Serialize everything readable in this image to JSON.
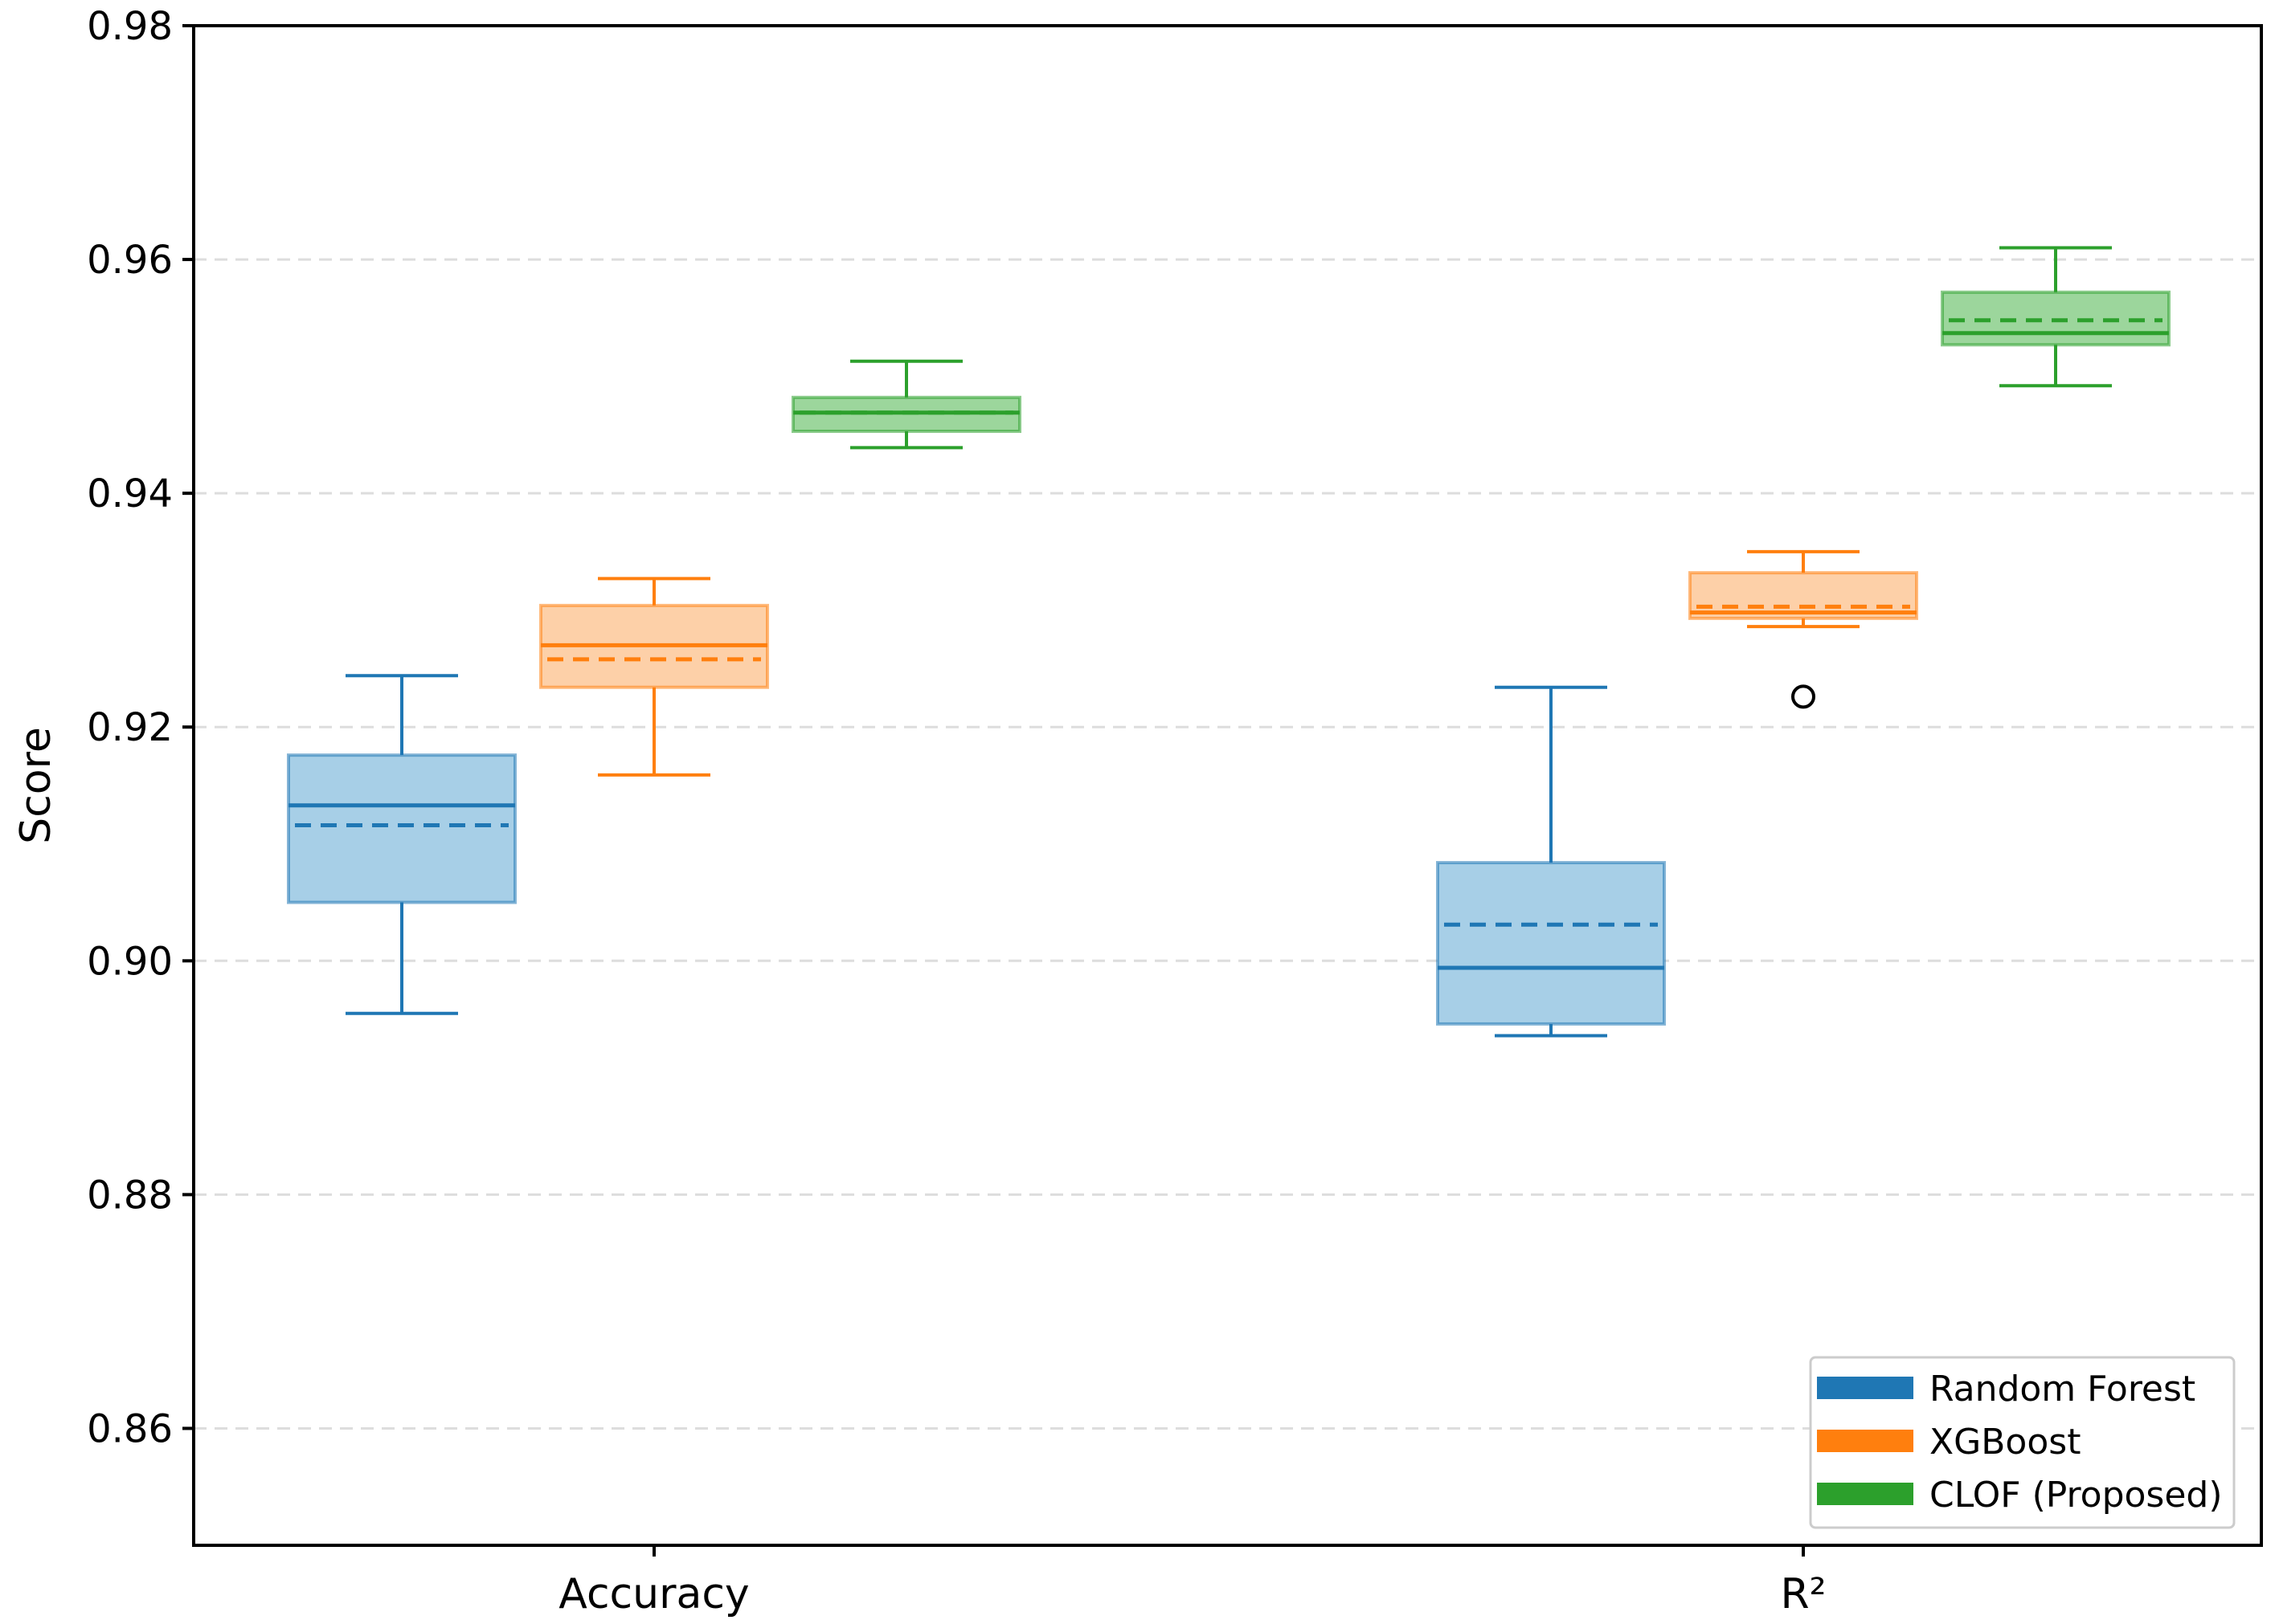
{
  "chart_data": {
    "type": "box",
    "title": "",
    "xlabel": "",
    "ylabel": "Score",
    "ylim": [
      0.85,
      0.98
    ],
    "yticks": [
      0.86,
      0.88,
      0.9,
      0.92,
      0.94,
      0.96,
      0.98
    ],
    "ytick_labels": [
      "0.86",
      "0.88",
      "0.90",
      "0.92",
      "0.94",
      "0.96",
      "0.98"
    ],
    "grid": "horizontal dashed",
    "categories": [
      "Accuracy",
      "R²"
    ],
    "legend_position": "bottom-right",
    "series": [
      {
        "name": "Random Forest",
        "color": "#1f77b4",
        "fill": "#a7cfe7",
        "boxes": [
          {
            "category": "Accuracy",
            "whisker_low": 0.8955,
            "q1": 0.905,
            "median": 0.9133,
            "mean": 0.9116,
            "q3": 0.9176,
            "whisker_high": 0.9244,
            "outliers": []
          },
          {
            "category": "R²",
            "whisker_low": 0.8936,
            "q1": 0.8946,
            "median": 0.8994,
            "mean": 0.9031,
            "q3": 0.9084,
            "whisker_high": 0.9234,
            "outliers": []
          }
        ]
      },
      {
        "name": "XGBoost",
        "color": "#ff7f0e",
        "fill": "#fdd0a8",
        "boxes": [
          {
            "category": "Accuracy",
            "whisker_low": 0.9159,
            "q1": 0.9234,
            "median": 0.927,
            "mean": 0.9258,
            "q3": 0.9304,
            "whisker_high": 0.9327,
            "outliers": []
          },
          {
            "category": "R²",
            "whisker_low": 0.9286,
            "q1": 0.9293,
            "median": 0.9298,
            "mean": 0.9303,
            "q3": 0.9332,
            "whisker_high": 0.935,
            "outliers": [
              0.9226
            ]
          }
        ]
      },
      {
        "name": "CLOF (Proposed)",
        "color": "#2ca02c",
        "fill": "#9cd69c",
        "boxes": [
          {
            "category": "Accuracy",
            "whisker_low": 0.9439,
            "q1": 0.9453,
            "median": 0.9469,
            "mean": 0.9469,
            "q3": 0.9482,
            "whisker_high": 0.9513,
            "outliers": []
          },
          {
            "category": "R²",
            "whisker_low": 0.9492,
            "q1": 0.9527,
            "median": 0.9537,
            "mean": 0.9548,
            "q3": 0.9572,
            "whisker_high": 0.961,
            "outliers": []
          }
        ]
      }
    ]
  }
}
